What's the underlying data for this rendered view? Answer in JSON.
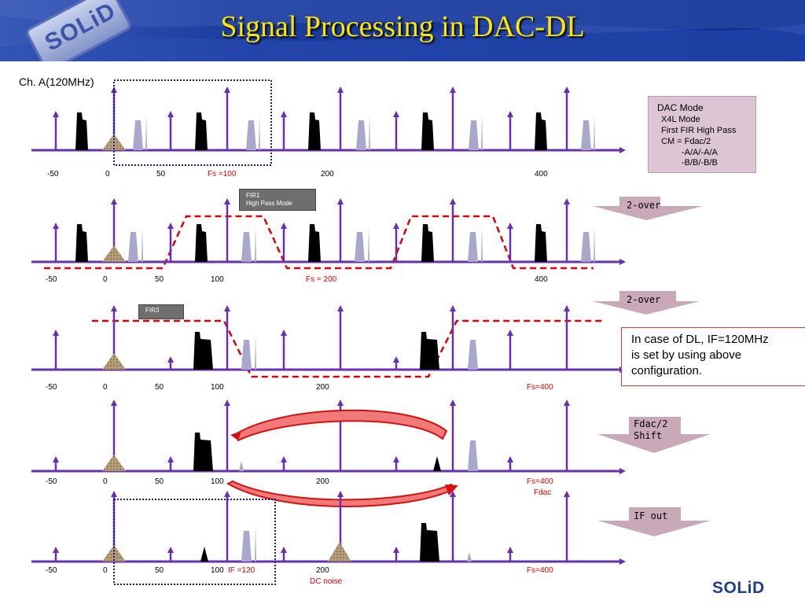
{
  "header": {
    "title": "Signal Processing in DAC-DL",
    "logo": "SOLiD"
  },
  "channel_label": "Ch. A(120MHz)",
  "dac_mode": {
    "lines": [
      "DAC Mode",
      "X4L Mode",
      "First FIR High Pass",
      "CM = Fdac/2",
      "-A/A/-A/A",
      "-B/B/-B/B"
    ]
  },
  "filters": {
    "fir1_line1": "FIR1",
    "fir1_line2": "High Pass Mode",
    "fir3": "FIR3"
  },
  "steps": {
    "step1": "2-over",
    "step2": "2-over",
    "step3_line1": "Fdac/2",
    "step3_line2": "Shift",
    "step4": "IF out"
  },
  "note": {
    "lines": [
      "In case of DL, IF=120MHz",
      "is set by using above",
      "configuration."
    ]
  },
  "axes": {
    "row1": {
      "ticks": [
        "-50",
        "0",
        "50",
        "200",
        "400"
      ],
      "fs": "Fs =100"
    },
    "row2": {
      "ticks": [
        "-50",
        "0",
        "50",
        "100",
        "400"
      ],
      "fs": "Fs = 200"
    },
    "row3": {
      "ticks": [
        "-50",
        "0",
        "50",
        "100",
        "200"
      ],
      "fs": "Fs=400"
    },
    "row4": {
      "ticks": [
        "-50",
        "0",
        "50",
        "100",
        "200"
      ],
      "fs": "Fs=400",
      "fdac": "Fdac"
    },
    "row5": {
      "ticks": [
        "-50",
        "0",
        "50",
        "100",
        "200"
      ],
      "if_label": "IF =120",
      "fs": "Fs=400",
      "dc_noise": "DC noise"
    }
  },
  "footer": {
    "logo": "SOLiD"
  },
  "colors": {
    "axis": "#6a2fb0",
    "header_blue": "#1b3c9e",
    "title_yellow": "#ffe600",
    "filter_red": "#e00000",
    "image_lavender": "#a7a8cc",
    "noise_tan": "#b8a27a",
    "signal_black": "#000000",
    "step_arrow": "#c9a9b8"
  }
}
